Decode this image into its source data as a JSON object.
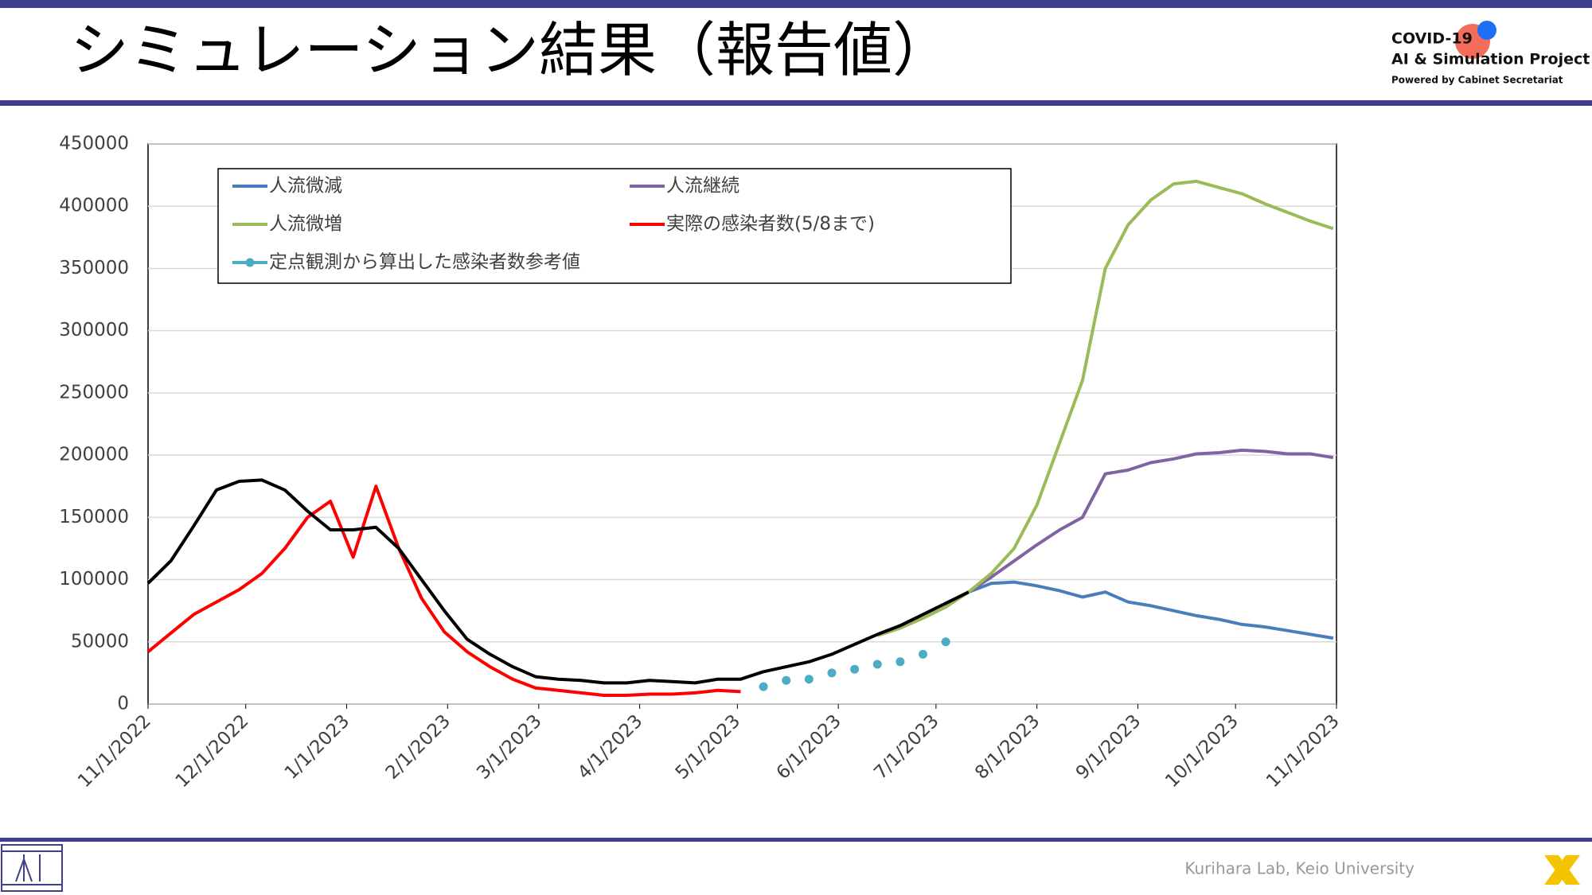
{
  "header": {
    "title": "シミュレーション結果（報告値）",
    "logo_line1": "COVID-19",
    "logo_line2": "AI & Simulation Project",
    "logo_line3": "Powered by Cabinet Secretariat"
  },
  "footer": {
    "text": "Kurihara Lab, Keio University"
  },
  "chart_data": {
    "type": "line",
    "x": [
      "2022-11-01",
      "2022-11-08",
      "2022-11-15",
      "2022-11-22",
      "2022-11-29",
      "2022-12-06",
      "2022-12-13",
      "2022-12-20",
      "2022-12-27",
      "2023-01-03",
      "2023-01-10",
      "2023-01-17",
      "2023-01-24",
      "2023-01-31",
      "2023-02-07",
      "2023-02-14",
      "2023-02-21",
      "2023-02-28",
      "2023-03-07",
      "2023-03-14",
      "2023-03-21",
      "2023-03-28",
      "2023-04-04",
      "2023-04-11",
      "2023-04-18",
      "2023-04-25",
      "2023-05-02",
      "2023-05-09",
      "2023-05-16",
      "2023-05-23",
      "2023-05-30",
      "2023-06-06",
      "2023-06-13",
      "2023-06-20",
      "2023-06-27",
      "2023-07-04",
      "2023-07-11",
      "2023-07-18",
      "2023-07-25",
      "2023-08-01",
      "2023-08-08",
      "2023-08-15",
      "2023-08-22",
      "2023-08-29",
      "2023-09-05",
      "2023-09-12",
      "2023-09-19",
      "2023-09-26",
      "2023-10-03",
      "2023-10-10",
      "2023-10-17",
      "2023-10-24",
      "2023-10-31"
    ],
    "series": [
      {
        "color": "#000000",
        "values": [
          97000,
          115000,
          143000,
          172000,
          179000,
          180000,
          172000,
          155000,
          140000,
          140000,
          142000,
          125000,
          100000,
          75000,
          52000,
          40000,
          30000,
          22000,
          20000,
          19000,
          17000,
          17000,
          19000,
          18000,
          17000,
          20000,
          20000,
          26000,
          30000,
          34000,
          40000,
          48000,
          56000,
          63000,
          72000,
          81000,
          90000,
          null,
          null,
          null,
          null,
          null,
          null,
          null,
          null,
          null,
          null,
          null,
          null,
          null,
          null,
          null,
          null
        ]
      },
      {
        "name": "人流微減",
        "color": "#4a7ebb",
        "values": [
          null,
          null,
          null,
          null,
          null,
          null,
          null,
          null,
          null,
          null,
          null,
          null,
          null,
          null,
          null,
          null,
          null,
          null,
          null,
          null,
          null,
          null,
          null,
          null,
          null,
          null,
          null,
          null,
          null,
          null,
          null,
          null,
          null,
          null,
          null,
          null,
          90000,
          97000,
          98000,
          95000,
          91000,
          86000,
          90000,
          82000,
          79000,
          75000,
          71000,
          68000,
          64000,
          62000,
          59000,
          56000,
          53000
        ]
      },
      {
        "name": "人流継続",
        "color": "#8064a2",
        "values": [
          null,
          null,
          null,
          null,
          null,
          null,
          null,
          null,
          null,
          null,
          null,
          null,
          null,
          null,
          null,
          null,
          null,
          null,
          null,
          null,
          null,
          null,
          null,
          null,
          null,
          null,
          null,
          null,
          null,
          null,
          null,
          null,
          null,
          null,
          null,
          null,
          90000,
          102000,
          115000,
          128000,
          140000,
          150000,
          185000,
          188000,
          194000,
          197000,
          201000,
          202000,
          204000,
          203000,
          201000,
          201000,
          198000
        ]
      },
      {
        "name": "人流微増",
        "color": "#9bbb59",
        "values": [
          null,
          null,
          null,
          null,
          null,
          null,
          null,
          null,
          null,
          null,
          null,
          null,
          null,
          null,
          null,
          null,
          null,
          null,
          null,
          null,
          null,
          null,
          null,
          null,
          null,
          null,
          null,
          null,
          null,
          null,
          null,
          null,
          55000,
          61000,
          69000,
          78000,
          90000,
          105000,
          125000,
          160000,
          210000,
          260000,
          350000,
          385000,
          405000,
          418000,
          420000,
          415000,
          410000,
          402000,
          395000,
          388000,
          382000
        ]
      },
      {
        "name": "実際の感染者数(5/8まで)",
        "color": "#ff0000",
        "values": [
          42000,
          57000,
          72000,
          82000,
          92000,
          105000,
          125000,
          150000,
          163000,
          118000,
          175000,
          125000,
          85000,
          58000,
          42000,
          30000,
          20000,
          13000,
          11000,
          9000,
          7000,
          7000,
          8000,
          8000,
          9000,
          11000,
          10000,
          null,
          null,
          null,
          null,
          null,
          null,
          null,
          null,
          null,
          null,
          null,
          null,
          null,
          null,
          null,
          null,
          null,
          null,
          null,
          null,
          null,
          null,
          null,
          null,
          null,
          null
        ]
      },
      {
        "name": "定点観測から算出した感染者数参考値",
        "color": "#4bacc6",
        "marker_only": true,
        "values": [
          null,
          null,
          null,
          null,
          null,
          null,
          null,
          null,
          null,
          null,
          null,
          null,
          null,
          null,
          null,
          null,
          null,
          null,
          null,
          null,
          null,
          null,
          null,
          null,
          null,
          null,
          null,
          14000,
          19000,
          20000,
          25000,
          28000,
          32000,
          34000,
          40000,
          50000,
          null,
          null,
          null,
          null,
          null,
          null,
          null,
          null,
          null,
          null,
          null,
          null,
          null,
          null,
          null,
          null,
          null
        ]
      }
    ],
    "xlim": [
      "2022-11-01",
      "2023-11-01"
    ],
    "xticks": [
      {
        "value": "2022-11-01",
        "label": "11/1/2022"
      },
      {
        "value": "2022-12-01",
        "label": "12/1/2022"
      },
      {
        "value": "2023-01-01",
        "label": "1/1/2023"
      },
      {
        "value": "2023-02-01",
        "label": "2/1/2023"
      },
      {
        "value": "2023-03-01",
        "label": "3/1/2023"
      },
      {
        "value": "2023-04-01",
        "label": "4/1/2023"
      },
      {
        "value": "2023-05-01",
        "label": "5/1/2023"
      },
      {
        "value": "2023-06-01",
        "label": "6/1/2023"
      },
      {
        "value": "2023-07-01",
        "label": "7/1/2023"
      },
      {
        "value": "2023-08-01",
        "label": "8/1/2023"
      },
      {
        "value": "2023-09-01",
        "label": "9/1/2023"
      },
      {
        "value": "2023-10-01",
        "label": "10/1/2023"
      },
      {
        "value": "2023-11-01",
        "label": "11/1/2023"
      }
    ],
    "ylim": [
      0,
      450000
    ],
    "yticks": [
      0,
      50000,
      100000,
      150000,
      200000,
      250000,
      300000,
      350000,
      400000,
      450000
    ],
    "grid": true,
    "legend": "top-left"
  }
}
